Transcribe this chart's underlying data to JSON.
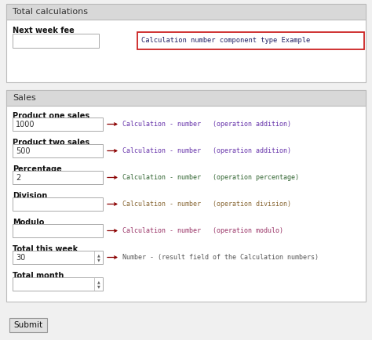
{
  "bg_color": "#f0f0f0",
  "panel_bg": "#ffffff",
  "panel_border": "#bbbbbb",
  "header_bg": "#d8d8d8",
  "header_text_color": "#333333",
  "label_color": "#111111",
  "field_bg": "#ffffff",
  "field_border": "#aaaaaa",
  "field_text_color": "#333333",
  "annotation_color": "#8b0000",
  "calc_color_1": "#6633aa",
  "calc_color_2": "#6633aa",
  "calc_color_3": "#336633",
  "calc_color_4": "#886633",
  "calc_color_5": "#993366",
  "number_color": "#555555",
  "title_box_border": "#cc2222",
  "title_text_color": "#222266",
  "submit_bg": "#e0e0e0",
  "submit_border": "#999999",
  "section1_title": "Total calculations",
  "section1_field_label": "Next week fee",
  "title_annotation": "Calculation number component type Example",
  "section2_title": "Sales",
  "fields": [
    {
      "label": "Product one sales",
      "value": "1000",
      "annotation": "Calculation - number   (operation addition)",
      "ann_color": "#6633aa",
      "spinner": false
    },
    {
      "label": "Product two sales",
      "value": "500",
      "annotation": "Calculation - number   (operation addition)",
      "ann_color": "#6633aa",
      "spinner": false
    },
    {
      "label": "Percentage",
      "value": "2",
      "annotation": "Calculation - number   (operation percentage)",
      "ann_color": "#336633",
      "spinner": false
    },
    {
      "label": "Division",
      "value": "",
      "annotation": "Calculation - number   (operation division)",
      "ann_color": "#886633",
      "spinner": false
    },
    {
      "label": "Modulo",
      "value": "",
      "annotation": "Calculation - number   (operation modulo)",
      "ann_color": "#993366",
      "spinner": false
    },
    {
      "label": "Total this week",
      "value": "30",
      "annotation": "Number - (result field of the Calculation numbers)",
      "ann_color": "#555555",
      "spinner": true
    },
    {
      "label": "Total month",
      "value": "",
      "annotation": "",
      "ann_color": "#555555",
      "spinner": true
    }
  ],
  "submit_label": "Submit"
}
